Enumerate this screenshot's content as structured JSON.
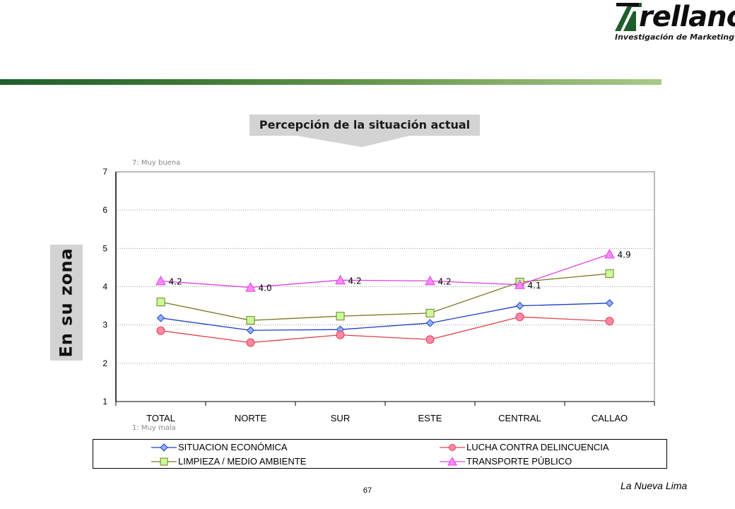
{
  "brand": {
    "name": "rellano",
    "tagline": "Investigación de Marketing",
    "colors": {
      "green": "#1f5e2c",
      "dark": "#0d0d0d"
    }
  },
  "callout": {
    "title": "Percepción de la situación actual"
  },
  "side_label": "En su zona",
  "footer": {
    "page": "67",
    "brand": "La Nueva Lima"
  },
  "chart_data": {
    "type": "line",
    "categories": [
      "TOTAL",
      "NORTE",
      "SUR",
      "ESTE",
      "CENTRAL",
      "CALLAO"
    ],
    "ylim": [
      1,
      7
    ],
    "yticks": [
      "1",
      "2",
      "3",
      "4",
      "5",
      "6",
      "7"
    ],
    "scale_top_note": "7: Muy buena",
    "scale_bottom_note": "1: Muy mala",
    "grid": true,
    "legend_position": "bottom",
    "series": [
      {
        "name": "SITUACION ECONÓMICA",
        "values": [
          3.18,
          2.86,
          2.88,
          3.05,
          3.5,
          3.57
        ],
        "color": "#1f3fbf",
        "fill": "#8fb0ff",
        "marker": "diamond",
        "labels": []
      },
      {
        "name": "LUCHA CONTRA DELINCUENCIA",
        "values": [
          2.85,
          2.54,
          2.74,
          2.62,
          3.21,
          3.1
        ],
        "color": "#e0404a",
        "fill": "#ff88a8",
        "marker": "circle",
        "labels": []
      },
      {
        "name": "LIMPIEZA / MEDIO AMBIENTE",
        "values": [
          3.6,
          3.12,
          3.23,
          3.31,
          4.12,
          4.34
        ],
        "color": "#7a7a22",
        "fill": "#c8ff9a",
        "marker": "square",
        "labels": []
      },
      {
        "name": "TRANSPORTE PÚBLICO",
        "values": [
          4.15,
          3.98,
          4.17,
          4.15,
          4.05,
          4.85
        ],
        "color": "#e040e0",
        "fill": "#ff88ff",
        "marker": "triangle",
        "labels": [
          "4.2",
          "4.0",
          "4.2",
          "4.2",
          "4.1",
          "4.9"
        ]
      }
    ]
  }
}
